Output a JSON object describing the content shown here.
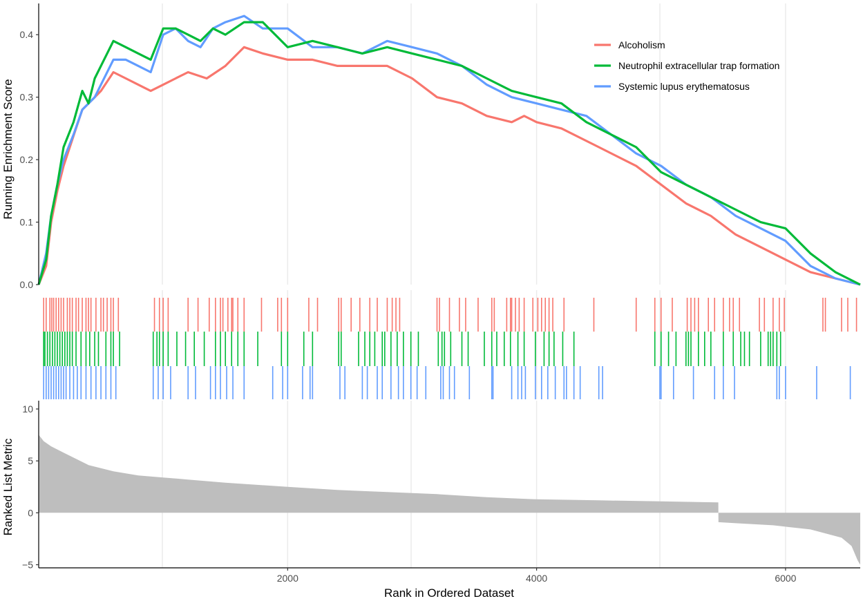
{
  "chart_data": {
    "type": "line",
    "panels": {
      "enrichment": {
        "ylabel": "Running Enrichment Score",
        "yticks": [
          0.0,
          0.1,
          0.2,
          0.3,
          0.4
        ],
        "ytick_labels": [
          "0.0",
          "0.1",
          "0.2",
          "0.3",
          "0.4"
        ],
        "ylim": [
          0.0,
          0.45
        ]
      },
      "ranked_metric": {
        "ylabel": "Ranked List Metric",
        "yticks": [
          -5,
          0,
          5,
          10
        ],
        "ytick_labels": [
          "−5",
          "0",
          "5",
          "10"
        ],
        "ylim": [
          -5.3,
          10.8
        ],
        "fill_color": "#bebebe",
        "values": [
          [
            1,
            7.5
          ],
          [
            40,
            6.9
          ],
          [
            100,
            6.4
          ],
          [
            200,
            5.8
          ],
          [
            400,
            4.6
          ],
          [
            600,
            4.0
          ],
          [
            800,
            3.6
          ],
          [
            1000,
            3.4
          ],
          [
            1200,
            3.2
          ],
          [
            1500,
            2.9
          ],
          [
            2000,
            2.5
          ],
          [
            2400,
            2.2
          ],
          [
            2800,
            2.0
          ],
          [
            3200,
            1.8
          ],
          [
            3600,
            1.5
          ],
          [
            4000,
            1.3
          ],
          [
            4500,
            1.2
          ],
          [
            5000,
            1.1
          ],
          [
            5460,
            1.0
          ],
          [
            5461,
            -0.9
          ],
          [
            5600,
            -1.0
          ],
          [
            5900,
            -1.2
          ],
          [
            6200,
            -1.6
          ],
          [
            6450,
            -2.4
          ],
          [
            6530,
            -3.2
          ],
          [
            6580,
            -4.6
          ],
          [
            6600,
            -5.0
          ]
        ]
      }
    },
    "xlabel": "Rank in Ordered Dataset",
    "xlim": [
      0,
      6600
    ],
    "xticks": [
      2000,
      4000,
      6000
    ],
    "xtick_labels": [
      "2000",
      "4000",
      "6000"
    ],
    "legend_position": "top-right",
    "series": [
      {
        "name": "Alcoholism",
        "color": "#f8766d",
        "running_es": [
          [
            0,
            0.0
          ],
          [
            60,
            0.03
          ],
          [
            100,
            0.1
          ],
          [
            150,
            0.15
          ],
          [
            200,
            0.19
          ],
          [
            300,
            0.25
          ],
          [
            350,
            0.28
          ],
          [
            450,
            0.3
          ],
          [
            500,
            0.31
          ],
          [
            600,
            0.34
          ],
          [
            700,
            0.33
          ],
          [
            800,
            0.32
          ],
          [
            900,
            0.31
          ],
          [
            1000,
            0.32
          ],
          [
            1100,
            0.33
          ],
          [
            1200,
            0.34
          ],
          [
            1350,
            0.33
          ],
          [
            1500,
            0.35
          ],
          [
            1650,
            0.38
          ],
          [
            1800,
            0.37
          ],
          [
            2000,
            0.36
          ],
          [
            2200,
            0.36
          ],
          [
            2400,
            0.35
          ],
          [
            2600,
            0.35
          ],
          [
            2800,
            0.35
          ],
          [
            3000,
            0.33
          ],
          [
            3200,
            0.3
          ],
          [
            3400,
            0.29
          ],
          [
            3600,
            0.27
          ],
          [
            3800,
            0.26
          ],
          [
            3900,
            0.27
          ],
          [
            4000,
            0.26
          ],
          [
            4200,
            0.25
          ],
          [
            4500,
            0.22
          ],
          [
            4800,
            0.19
          ],
          [
            5000,
            0.16
          ],
          [
            5200,
            0.13
          ],
          [
            5400,
            0.11
          ],
          [
            5600,
            0.08
          ],
          [
            5800,
            0.06
          ],
          [
            6000,
            0.04
          ],
          [
            6200,
            0.02
          ],
          [
            6400,
            0.01
          ],
          [
            6600,
            0.0
          ]
        ],
        "hits": [
          40,
          60,
          90,
          105,
          120,
          140,
          160,
          180,
          200,
          230,
          250,
          270,
          300,
          320,
          350,
          380,
          400,
          420,
          460,
          500,
          520,
          550,
          580,
          600,
          640,
          930,
          970,
          1000,
          1040,
          1200,
          1280,
          1370,
          1420,
          1460,
          1480,
          1520,
          1550,
          1560,
          1600,
          1650,
          1790,
          1920,
          1950,
          2000,
          2170,
          2240,
          2410,
          2430,
          2510,
          2580,
          2660,
          2720,
          2800,
          2840,
          2870,
          2900,
          3200,
          3220,
          3300,
          3380,
          3430,
          3530,
          3640,
          3660,
          3760,
          3790,
          3800,
          3830,
          3860,
          3900,
          3970,
          4010,
          4040,
          4070,
          4100,
          4130,
          4220,
          4460,
          4800,
          4950,
          5000,
          5090,
          5210,
          5240,
          5270,
          5300,
          5380,
          5430,
          5500,
          5550,
          5580,
          5630,
          5790,
          5830,
          5900,
          5950,
          5990,
          6300,
          6320,
          6450,
          6500,
          6570
        ]
      },
      {
        "name": "Neutrophil extracellular trap formation",
        "color": "#00ba38",
        "running_es": [
          [
            0,
            0.0
          ],
          [
            60,
            0.04
          ],
          [
            100,
            0.11
          ],
          [
            150,
            0.16
          ],
          [
            200,
            0.22
          ],
          [
            280,
            0.26
          ],
          [
            350,
            0.31
          ],
          [
            400,
            0.29
          ],
          [
            450,
            0.33
          ],
          [
            500,
            0.35
          ],
          [
            600,
            0.39
          ],
          [
            700,
            0.38
          ],
          [
            800,
            0.37
          ],
          [
            900,
            0.36
          ],
          [
            1000,
            0.41
          ],
          [
            1100,
            0.41
          ],
          [
            1200,
            0.4
          ],
          [
            1300,
            0.39
          ],
          [
            1400,
            0.41
          ],
          [
            1500,
            0.4
          ],
          [
            1650,
            0.42
          ],
          [
            1800,
            0.42
          ],
          [
            2000,
            0.38
          ],
          [
            2200,
            0.39
          ],
          [
            2400,
            0.38
          ],
          [
            2600,
            0.37
          ],
          [
            2800,
            0.38
          ],
          [
            3000,
            0.37
          ],
          [
            3200,
            0.36
          ],
          [
            3400,
            0.35
          ],
          [
            3600,
            0.33
          ],
          [
            3800,
            0.31
          ],
          [
            4000,
            0.3
          ],
          [
            4200,
            0.29
          ],
          [
            4400,
            0.26
          ],
          [
            4600,
            0.24
          ],
          [
            4800,
            0.22
          ],
          [
            5000,
            0.18
          ],
          [
            5200,
            0.16
          ],
          [
            5400,
            0.14
          ],
          [
            5600,
            0.12
          ],
          [
            5800,
            0.1
          ],
          [
            6000,
            0.09
          ],
          [
            6200,
            0.05
          ],
          [
            6400,
            0.02
          ],
          [
            6600,
            0.0
          ]
        ],
        "hits": [
          40,
          50,
          70,
          90,
          110,
          130,
          150,
          170,
          190,
          210,
          230,
          250,
          270,
          300,
          340,
          380,
          410,
          450,
          480,
          540,
          580,
          600,
          650,
          920,
          950,
          970,
          1000,
          1040,
          1110,
          1180,
          1250,
          1330,
          1420,
          1460,
          1500,
          1550,
          1600,
          1650,
          1760,
          1950,
          2000,
          2130,
          2200,
          2410,
          2430,
          2570,
          2620,
          2660,
          2700,
          2760,
          2780,
          2830,
          2880,
          2930,
          2990,
          3050,
          3210,
          3240,
          3260,
          3310,
          3400,
          3450,
          3580,
          3640,
          3680,
          3740,
          3790,
          3850,
          3900,
          3990,
          4060,
          4100,
          4140,
          4210,
          4300,
          4950,
          5000,
          5060,
          5120,
          5200,
          5220,
          5240,
          5300,
          5350,
          5400,
          5500,
          5580,
          5640,
          5670,
          5710,
          5800,
          5860,
          5880,
          5900,
          5930,
          5960
        ]
      },
      {
        "name": "Systemic lupus erythematosus",
        "color": "#619cff",
        "running_es": [
          [
            0,
            0.0
          ],
          [
            60,
            0.05
          ],
          [
            100,
            0.11
          ],
          [
            150,
            0.16
          ],
          [
            200,
            0.2
          ],
          [
            280,
            0.24
          ],
          [
            350,
            0.28
          ],
          [
            450,
            0.3
          ],
          [
            500,
            0.32
          ],
          [
            600,
            0.36
          ],
          [
            700,
            0.36
          ],
          [
            800,
            0.35
          ],
          [
            900,
            0.34
          ],
          [
            1000,
            0.4
          ],
          [
            1100,
            0.41
          ],
          [
            1200,
            0.39
          ],
          [
            1300,
            0.38
          ],
          [
            1400,
            0.41
          ],
          [
            1500,
            0.42
          ],
          [
            1650,
            0.43
          ],
          [
            1800,
            0.41
          ],
          [
            2000,
            0.41
          ],
          [
            2200,
            0.38
          ],
          [
            2400,
            0.38
          ],
          [
            2600,
            0.37
          ],
          [
            2800,
            0.39
          ],
          [
            3000,
            0.38
          ],
          [
            3200,
            0.37
          ],
          [
            3400,
            0.35
          ],
          [
            3600,
            0.32
          ],
          [
            3800,
            0.3
          ],
          [
            4000,
            0.29
          ],
          [
            4200,
            0.28
          ],
          [
            4400,
            0.27
          ],
          [
            4600,
            0.24
          ],
          [
            4800,
            0.21
          ],
          [
            5000,
            0.19
          ],
          [
            5200,
            0.16
          ],
          [
            5400,
            0.14
          ],
          [
            5600,
            0.11
          ],
          [
            5800,
            0.09
          ],
          [
            6000,
            0.07
          ],
          [
            6200,
            0.03
          ],
          [
            6400,
            0.01
          ],
          [
            6600,
            0.0
          ]
        ],
        "hits": [
          40,
          60,
          80,
          100,
          120,
          140,
          160,
          180,
          200,
          220,
          250,
          280,
          310,
          340,
          380,
          420,
          460,
          500,
          540,
          580,
          620,
          920,
          960,
          1000,
          1060,
          1200,
          1260,
          1380,
          1420,
          1460,
          1510,
          1560,
          1650,
          1880,
          1960,
          2000,
          2120,
          2180,
          2200,
          2420,
          2460,
          2600,
          2640,
          2720,
          2760,
          2830,
          2890,
          2930,
          2990,
          3040,
          3110,
          3230,
          3250,
          3300,
          3340,
          3460,
          3640,
          3650,
          3800,
          3850,
          3880,
          3910,
          3990,
          4040,
          4090,
          4150,
          4220,
          4240,
          4300,
          4350,
          4500,
          4530,
          4990,
          5000,
          5100,
          5260,
          5430,
          5500,
          5590,
          5930,
          5950,
          6000,
          6250,
          6520
        ]
      }
    ]
  }
}
